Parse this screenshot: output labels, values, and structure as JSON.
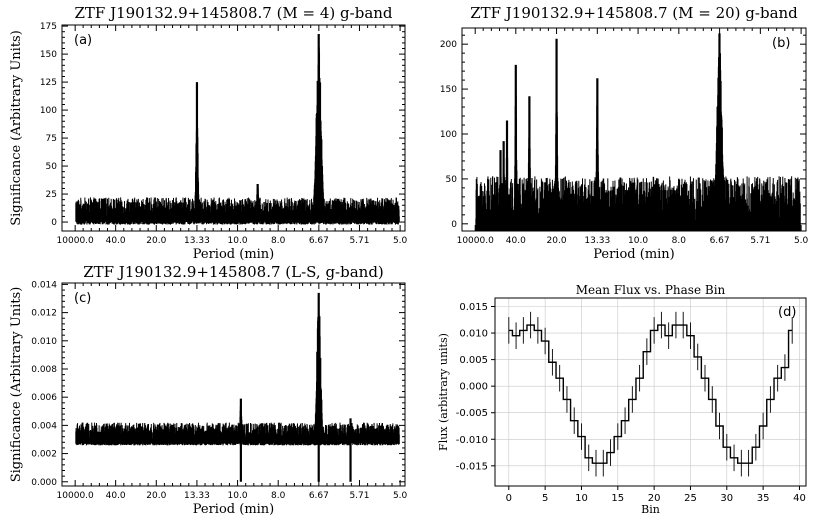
{
  "chart_data": [
    {
      "id": "a",
      "type": "line",
      "title": "ZTF J190132.9+145808.7 (M = 4) g-band",
      "panel_label": "(a)",
      "xlabel": "Period (min)",
      "ylabel": "Significance (Arbitrary Units)",
      "x_tick_labels": [
        "10000.0",
        "40.0",
        "20.0",
        "13.33",
        "10.0",
        "8.0",
        "6.67",
        "5.71",
        "5.0"
      ],
      "x_tick_freq": [
        0.0001,
        0.025,
        0.05,
        0.075,
        0.1,
        0.125,
        0.15,
        0.175,
        0.2
      ],
      "xlim_freq": [
        -0.008,
        0.203
      ],
      "ylim": [
        -8,
        176
      ],
      "y_ticks": [
        0,
        25,
        50,
        75,
        100,
        125,
        150,
        175
      ],
      "noise": {
        "base": 13,
        "amp": 9
      },
      "peaks": [
        {
          "period": 13.33,
          "value": 125,
          "width": 0.0009
        },
        {
          "period": 6.67,
          "value": 168,
          "width": 0.0022
        },
        {
          "period": 8.9,
          "value": 34,
          "width": 0.0012
        }
      ],
      "grid": false
    },
    {
      "id": "b",
      "type": "line",
      "title": "ZTF J190132.9+145808.7 (M = 20) g-band",
      "panel_label": "(b)",
      "xlabel": "Period (min)",
      "ylabel": "",
      "x_tick_labels": [
        "10000.0",
        "40.0",
        "20.0",
        "13.33",
        "10.0",
        "8.0",
        "6.67",
        "5.71",
        "5.0"
      ],
      "x_tick_freq": [
        0.0001,
        0.025,
        0.05,
        0.075,
        0.1,
        0.125,
        0.15,
        0.175,
        0.2
      ],
      "xlim_freq": [
        -0.008,
        0.203
      ],
      "ylim": [
        -8,
        218
      ],
      "y_ticks": [
        0,
        50,
        100,
        150,
        200
      ],
      "noise": {
        "base": 27,
        "amp": 26
      },
      "peaks": [
        {
          "period": 64,
          "value": 82,
          "width": 0.0006
        },
        {
          "period": 57,
          "value": 92,
          "width": 0.0006
        },
        {
          "period": 51,
          "value": 115,
          "width": 0.0006
        },
        {
          "period": 40,
          "value": 177,
          "width": 0.0007
        },
        {
          "period": 30,
          "value": 142,
          "width": 0.0007
        },
        {
          "period": 20,
          "value": 206,
          "width": 0.0007
        },
        {
          "period": 13.33,
          "value": 162,
          "width": 0.0008
        },
        {
          "period": 6.67,
          "value": 212,
          "width": 0.0022
        }
      ],
      "grid": false
    },
    {
      "id": "c",
      "type": "line",
      "title": "ZTF J190132.9+145808.7  (L-S, g-band)",
      "panel_label": "(c)",
      "xlabel": "Period (min)",
      "ylabel": "Significance (Arbitrary Units)",
      "x_tick_labels": [
        "10000.0",
        "40.0",
        "20.0",
        "13.33",
        "10.0",
        "8.0",
        "6.67",
        "5.71",
        "5.0"
      ],
      "x_tick_freq": [
        0.0001,
        0.025,
        0.05,
        0.075,
        0.1,
        0.125,
        0.15,
        0.175,
        0.2
      ],
      "xlim_freq": [
        -0.008,
        0.203
      ],
      "ylim": [
        -0.0003,
        0.0141
      ],
      "y_ticks": [
        0.0,
        0.002,
        0.004,
        0.006,
        0.008,
        0.01,
        0.012,
        0.014
      ],
      "y_tick_labels": [
        "0.000",
        "0.002",
        "0.004",
        "0.006",
        "0.008",
        "0.010",
        "0.012",
        "0.014"
      ],
      "noise": {
        "base": 0.0036,
        "amp": 0.0006
      },
      "peaks": [
        {
          "period": 9.8,
          "value": 0.0059,
          "width": 0.0012
        },
        {
          "period": 6.67,
          "value": 0.0134,
          "width": 0.0022
        },
        {
          "period": 5.9,
          "value": 0.0045,
          "width": 0.0008
        }
      ],
      "grid": false
    },
    {
      "id": "d",
      "type": "line",
      "title": "Mean Flux vs. Phase Bin",
      "panel_label": "(d)",
      "xlabel": "Bin",
      "ylabel": "Flux (arbitrary units)",
      "xlim": [
        -1.9,
        40.9
      ],
      "ylim": [
        -0.0188,
        0.0166
      ],
      "x_ticks": [
        0,
        5,
        10,
        15,
        20,
        25,
        30,
        35,
        40
      ],
      "y_ticks": [
        0.015,
        0.01,
        0.005,
        0.0,
        -0.005,
        -0.01,
        -0.015
      ],
      "y_tick_labels": [
        "0.015",
        "0.010",
        "0.005",
        "0.000",
        "-0.005",
        "-0.010",
        "-0.015"
      ],
      "bins": [
        0,
        1,
        2,
        3,
        4,
        5,
        6,
        7,
        8,
        9,
        10,
        11,
        12,
        13,
        14,
        15,
        16,
        17,
        18,
        19,
        20,
        21,
        22,
        23,
        24,
        25,
        26,
        27,
        28,
        29,
        30,
        31,
        32,
        33,
        34,
        35,
        36,
        37,
        38,
        39
      ],
      "values": [
        0.0105,
        0.0095,
        0.0105,
        0.0115,
        0.0105,
        0.0085,
        0.0045,
        0.0015,
        -0.0025,
        -0.0065,
        -0.0095,
        -0.0135,
        -0.0145,
        -0.0145,
        -0.0125,
        -0.0095,
        -0.0065,
        -0.0025,
        0.0015,
        0.0065,
        0.0105,
        0.0115,
        0.0095,
        0.0115,
        0.0115,
        0.0095,
        0.0055,
        0.0015,
        -0.0025,
        -0.0075,
        -0.0115,
        -0.0135,
        -0.0145,
        -0.0145,
        -0.0115,
        -0.0075,
        -0.0025,
        0.0015,
        0.0035,
        0.0105
      ],
      "errors": [
        0.0025,
        0.0025,
        0.0025,
        0.0025,
        0.0025,
        0.0025,
        0.0025,
        0.0025,
        0.0025,
        0.0025,
        0.0025,
        0.0025,
        0.0025,
        0.0025,
        0.0025,
        0.0025,
        0.0025,
        0.0025,
        0.0025,
        0.0025,
        0.0025,
        0.0025,
        0.0025,
        0.0025,
        0.0025,
        0.0025,
        0.0025,
        0.0025,
        0.0025,
        0.0025,
        0.0025,
        0.0025,
        0.0025,
        0.0025,
        0.0025,
        0.0025,
        0.0025,
        0.0025,
        0.0025,
        0.0025
      ],
      "style": "steps-mid with error bars",
      "grid": true
    }
  ]
}
